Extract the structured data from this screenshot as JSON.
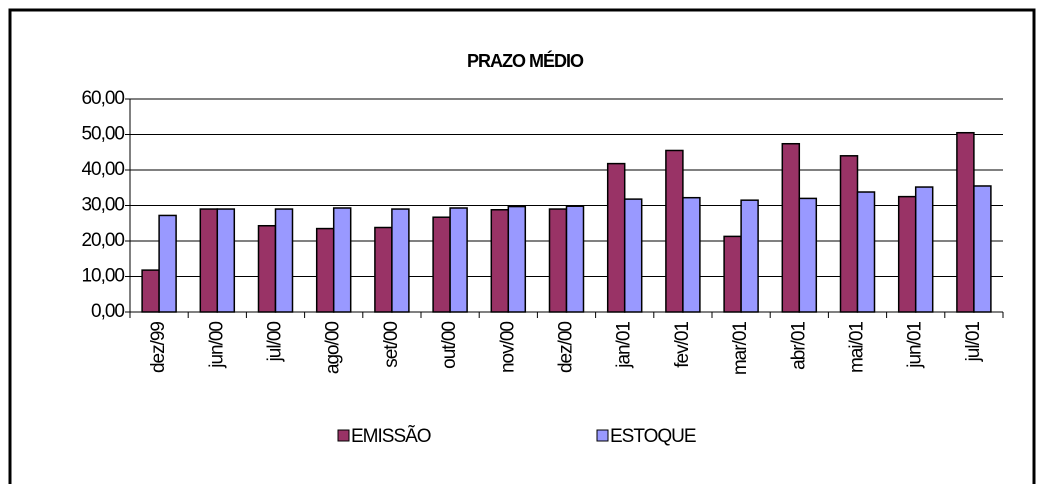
{
  "chart_data": {
    "type": "bar",
    "title": "PRAZO MÉDIO",
    "categories": [
      "dez/99",
      "jun/00",
      "jul/00",
      "ago/00",
      "set/00",
      "out/00",
      "nov/00",
      "dez/00",
      "jan/01",
      "fev/01",
      "mar/01",
      "abr/01",
      "mai/01",
      "jun/01",
      "jul/01"
    ],
    "series": [
      {
        "name": "EMISSÃO",
        "color": "#993366",
        "values": [
          11.8,
          29.0,
          24.3,
          23.5,
          23.8,
          26.7,
          28.8,
          29.0,
          41.8,
          45.5,
          21.3,
          47.4,
          44.0,
          32.5,
          50.5
        ]
      },
      {
        "name": "ESTOQUE",
        "color": "#9999ff",
        "values": [
          27.2,
          29.0,
          29.0,
          29.3,
          29.0,
          29.3,
          29.7,
          29.8,
          31.8,
          32.2,
          31.5,
          32.0,
          33.8,
          35.2,
          35.5
        ]
      }
    ],
    "ylim": [
      0,
      60
    ],
    "yticks": [
      {
        "value": 0,
        "label": "0,00"
      },
      {
        "value": 10,
        "label": "10,00"
      },
      {
        "value": 20,
        "label": "20,00"
      },
      {
        "value": 30,
        "label": "30,00"
      },
      {
        "value": 40,
        "label": "40,00"
      },
      {
        "value": 50,
        "label": "50,00"
      },
      {
        "value": 60,
        "label": "60,00"
      }
    ],
    "grid": true
  }
}
